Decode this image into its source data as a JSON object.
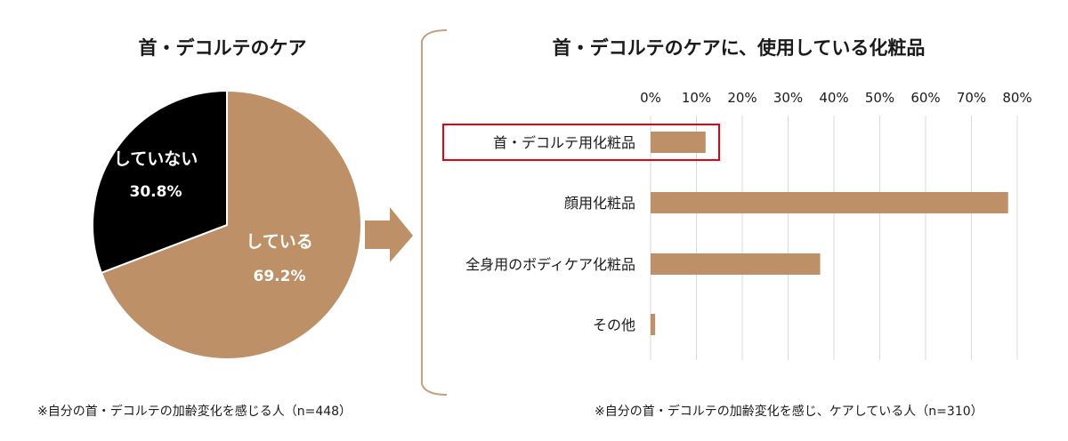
{
  "chart_data": [
    {
      "type": "pie",
      "title": "首・デコルテのケア",
      "slices": [
        {
          "label": "している",
          "value": 69.2,
          "value_label": "69.2%",
          "color": "#bd9068"
        },
        {
          "label": "していない",
          "value": 30.8,
          "value_label": "30.8%",
          "color": "#000000"
        }
      ],
      "note": "※自分の首・デコルテの加齢変化を感じる人（n=448）"
    },
    {
      "type": "bar",
      "orientation": "horizontal",
      "title": "首・デコルテのケアに、使用している化粧品",
      "categories": [
        "首・デコルテ用化粧品",
        "顔用化粧品",
        "全身用のボディケア化粧品",
        "その他"
      ],
      "values": [
        12,
        78,
        37,
        1
      ],
      "xlim": [
        0,
        80
      ],
      "x_ticks": [
        "0%",
        "10%",
        "20%",
        "30%",
        "40%",
        "50%",
        "60%",
        "70%",
        "80%"
      ],
      "grid": true,
      "highlighted_category": "首・デコルテ用化粧品",
      "bar_color": "#bd9068",
      "highlight_color": "#e60012",
      "note": "※自分の首・デコルテの加齢変化を感じ、ケアしている人（n=310）"
    }
  ]
}
